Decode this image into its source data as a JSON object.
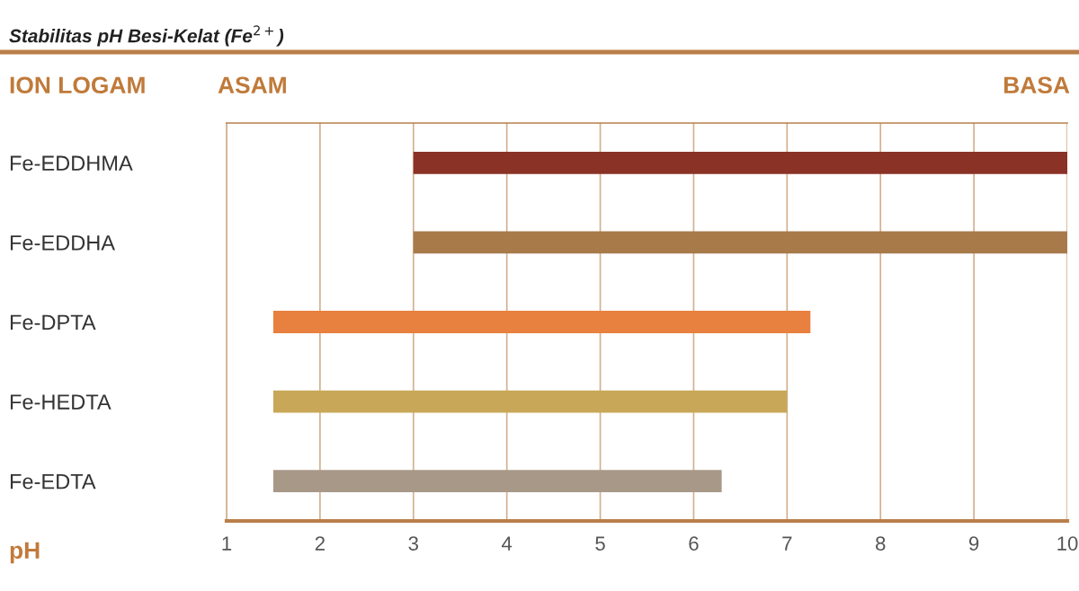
{
  "chart_data": {
    "type": "bar",
    "orientation": "horizontal",
    "title": "Stabilitas pH Besi-Kelat (Fe$^{2+}$)",
    "xlabel": "pH",
    "categories": [
      "Fe-EDDHMA",
      "Fe-EDDHA",
      "Fe-DPTA",
      "Fe-HEDTA",
      "Fe-EDTA"
    ],
    "base": [
      3,
      3,
      1.5,
      1.5,
      1.5
    ],
    "values": [
      7,
      7,
      5.75,
      5.5,
      4.8
    ],
    "colors": [
      "#8a3226",
      "#a87a4a",
      "#e8803f",
      "#c8a858",
      "#a89888"
    ],
    "xlim": [
      1,
      10
    ],
    "xticks": [
      1,
      2,
      3,
      4,
      5,
      6,
      7,
      8,
      9,
      10
    ],
    "grid": "x",
    "annotations": [
      "ION LOGAM",
      "ASAM",
      "BASA"
    ]
  }
}
